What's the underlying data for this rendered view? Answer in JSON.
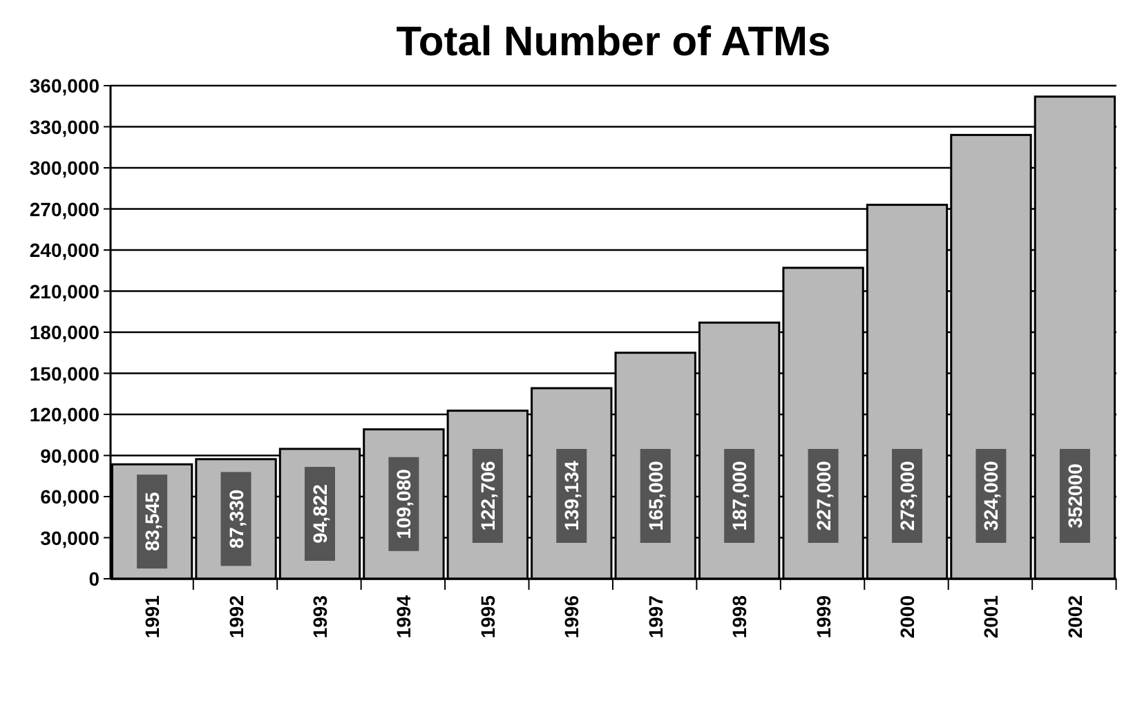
{
  "chart_data": {
    "type": "bar",
    "title": "Total Number of ATMs",
    "categories": [
      "1991",
      "1992",
      "1993",
      "1994",
      "1995",
      "1996",
      "1997",
      "1998",
      "1999",
      "2000",
      "2001",
      "2002"
    ],
    "values": [
      83545,
      87330,
      94822,
      109080,
      122706,
      139134,
      165000,
      187000,
      227000,
      273000,
      324000,
      352000
    ],
    "value_labels": [
      "83,545",
      "87,330",
      "94,822",
      "109,080",
      "122,706",
      "139,134",
      "165,000",
      "187,000",
      "227,000",
      "273,000",
      "324,000",
      "352000"
    ],
    "color": "#b8b8b8",
    "ylim": [
      0,
      360000
    ],
    "yticks": [
      {
        "value": 0,
        "label": "0"
      },
      {
        "value": 30000,
        "label": "30,000"
      },
      {
        "value": 60000,
        "label": "60,000"
      },
      {
        "value": 90000,
        "label": "90,000"
      },
      {
        "value": 120000,
        "label": "120,000"
      },
      {
        "value": 150000,
        "label": "150,000"
      },
      {
        "value": 180000,
        "label": "180,000"
      },
      {
        "value": 210000,
        "label": "210,000"
      },
      {
        "value": 240000,
        "label": "240,000"
      },
      {
        "value": 270000,
        "label": "270,000"
      },
      {
        "value": 300000,
        "label": "300,000"
      },
      {
        "value": 330000,
        "label": "330,000"
      },
      {
        "value": 360000,
        "label": "360,000"
      }
    ],
    "grid": "y"
  }
}
